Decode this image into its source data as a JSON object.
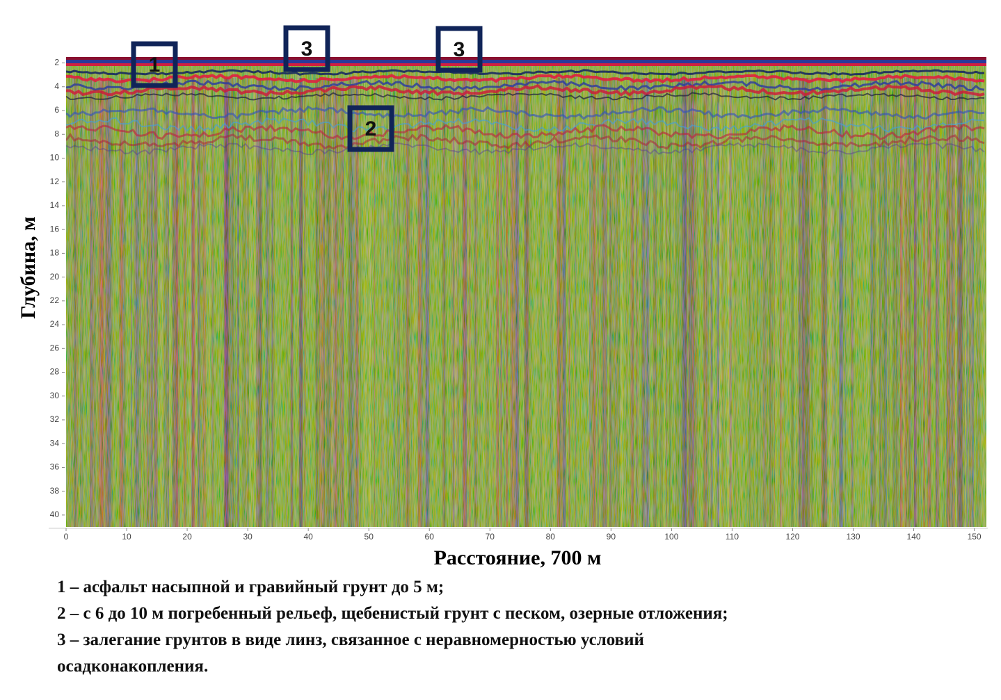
{
  "chart_data": {
    "type": "radargram",
    "xlabel": "Расстояние, 700 м",
    "ylabel": "Глубина, м",
    "xlim": [
      0,
      152
    ],
    "xticks": [
      0,
      10,
      20,
      30,
      40,
      50,
      60,
      70,
      80,
      90,
      100,
      110,
      120,
      130,
      140,
      150
    ],
    "ylim": [
      1.5,
      41
    ],
    "yticks": [
      2,
      4,
      6,
      8,
      10,
      12,
      14,
      16,
      18,
      20,
      22,
      24,
      26,
      28,
      30,
      32,
      34,
      36,
      38,
      40
    ],
    "y_inverted": true,
    "annotations": [
      "1",
      "3",
      "3",
      "2"
    ],
    "notes": [
      "1 – асфальт насыпной и гравийный грунт до 5 м;",
      "2 – с 6 до 10 м погребенный рельеф, щебенистый грунт с песком, озерные отложения;",
      "3 – залегание грунтов в виде линз, связанное с неравномерностью условий",
      "осадконакопления."
    ]
  }
}
